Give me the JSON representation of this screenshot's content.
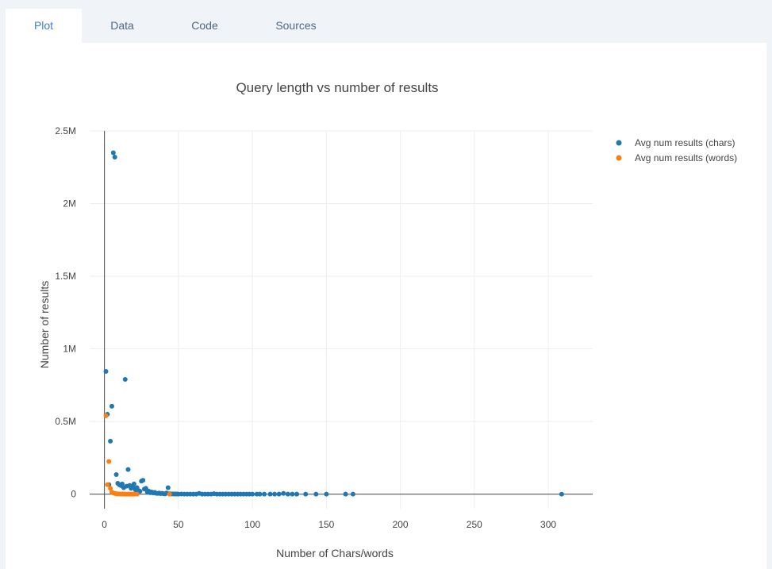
{
  "tabs": [
    {
      "label": "Plot",
      "active": true
    },
    {
      "label": "Data",
      "active": false
    },
    {
      "label": "Code",
      "active": false
    },
    {
      "label": "Sources",
      "active": false
    }
  ],
  "colors": {
    "accent": "#447adb",
    "series_chars": "#1f77b4",
    "series_words": "#ff7f0e"
  },
  "chart_data": {
    "type": "scatter",
    "title": "Query length vs number of results",
    "xlabel": "Number of Chars/words",
    "ylabel": "Number of results",
    "xlim": [
      -10,
      330
    ],
    "ylim": [
      -100000,
      2500000
    ],
    "xticks": [
      0,
      50,
      100,
      150,
      200,
      250,
      300
    ],
    "xtick_labels": [
      "0",
      "50",
      "100",
      "150",
      "200",
      "250",
      "300"
    ],
    "yticks": [
      0,
      500000,
      1000000,
      1500000,
      2000000,
      2500000
    ],
    "ytick_labels": [
      "0",
      "0.5M",
      "1M",
      "1.5M",
      "2M",
      "2.5M"
    ],
    "grid": true,
    "legend_position": "top-right",
    "series": [
      {
        "name": "Avg num results (chars)",
        "color": "#1f77b4",
        "points": [
          [
            1,
            845000
          ],
          [
            2,
            550000
          ],
          [
            3,
            65000
          ],
          [
            4,
            365000
          ],
          [
            5,
            605000
          ],
          [
            6,
            2350000
          ],
          [
            7,
            2320000
          ],
          [
            8,
            135000
          ],
          [
            9,
            75000
          ],
          [
            10,
            65000
          ],
          [
            11,
            60000
          ],
          [
            12,
            70000
          ],
          [
            13,
            45000
          ],
          [
            14,
            790000
          ],
          [
            15,
            55000
          ],
          [
            16,
            170000
          ],
          [
            17,
            60000
          ],
          [
            18,
            40000
          ],
          [
            19,
            50000
          ],
          [
            20,
            70000
          ],
          [
            21,
            30000
          ],
          [
            22,
            45000
          ],
          [
            23,
            25000
          ],
          [
            24,
            20000
          ],
          [
            25,
            90000
          ],
          [
            26,
            95000
          ],
          [
            27,
            35000
          ],
          [
            28,
            40000
          ],
          [
            29,
            15000
          ],
          [
            30,
            20000
          ],
          [
            31,
            10000
          ],
          [
            32,
            15000
          ],
          [
            33,
            8000
          ],
          [
            34,
            12000
          ],
          [
            35,
            6000
          ],
          [
            36,
            5000
          ],
          [
            37,
            8000
          ],
          [
            38,
            4000
          ],
          [
            39,
            6000
          ],
          [
            40,
            3000
          ],
          [
            41,
            2000
          ],
          [
            42,
            8000
          ],
          [
            43,
            45000
          ],
          [
            44,
            3000
          ],
          [
            45,
            2000
          ],
          [
            46,
            1500
          ],
          [
            47,
            1000
          ],
          [
            48,
            1000
          ],
          [
            49,
            800
          ],
          [
            50,
            600
          ],
          [
            52,
            800
          ],
          [
            54,
            600
          ],
          [
            56,
            500
          ],
          [
            58,
            400
          ],
          [
            60,
            400
          ],
          [
            62,
            300
          ],
          [
            64,
            5000
          ],
          [
            66,
            300
          ],
          [
            68,
            300
          ],
          [
            70,
            200
          ],
          [
            72,
            200
          ],
          [
            74,
            3000
          ],
          [
            76,
            200
          ],
          [
            78,
            200
          ],
          [
            80,
            200
          ],
          [
            82,
            150
          ],
          [
            84,
            150
          ],
          [
            86,
            150
          ],
          [
            88,
            100
          ],
          [
            90,
            100
          ],
          [
            92,
            100
          ],
          [
            94,
            100
          ],
          [
            96,
            100
          ],
          [
            98,
            100
          ],
          [
            100,
            100
          ],
          [
            103,
            80
          ],
          [
            105,
            80
          ],
          [
            108,
            80
          ],
          [
            112,
            60
          ],
          [
            115,
            60
          ],
          [
            118,
            60
          ],
          [
            121,
            5000
          ],
          [
            124,
            50
          ],
          [
            127,
            50
          ],
          [
            130,
            50
          ],
          [
            136,
            40
          ],
          [
            143,
            40
          ],
          [
            150,
            30
          ],
          [
            163,
            30
          ],
          [
            168,
            30
          ],
          [
            309,
            10
          ]
        ]
      },
      {
        "name": "Avg num results (words)",
        "color": "#ff7f0e",
        "points": [
          [
            1,
            540000
          ],
          [
            2,
            65000
          ],
          [
            3,
            225000
          ],
          [
            4,
            40000
          ],
          [
            5,
            15000
          ],
          [
            6,
            8000
          ],
          [
            7,
            5000
          ],
          [
            8,
            3000
          ],
          [
            9,
            2000
          ],
          [
            10,
            1500
          ],
          [
            11,
            1200
          ],
          [
            12,
            1000
          ],
          [
            13,
            800
          ],
          [
            14,
            700
          ],
          [
            15,
            600
          ],
          [
            16,
            500
          ],
          [
            17,
            400
          ],
          [
            18,
            300
          ],
          [
            19,
            300
          ],
          [
            20,
            200
          ],
          [
            22,
            150
          ],
          [
            44,
            100
          ]
        ]
      }
    ]
  }
}
